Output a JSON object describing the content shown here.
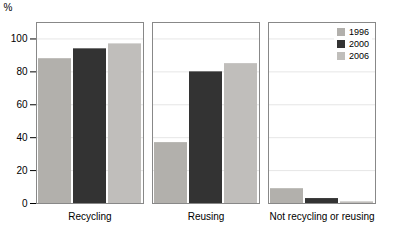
{
  "chart_data": {
    "type": "bar",
    "categories": [
      "Recycling",
      "Reusing",
      "Not recycling or reusing"
    ],
    "series": [
      {
        "name": "1996",
        "color": "#b2b0ac",
        "values": [
          88,
          37,
          9
        ]
      },
      {
        "name": "2000",
        "color": "#333333",
        "values": [
          94,
          80,
          3
        ]
      },
      {
        "name": "2006",
        "color": "#c0bebb",
        "values": [
          97,
          85,
          1
        ]
      }
    ],
    "ylabel": "%",
    "ylim": [
      0,
      110
    ],
    "yticks": [
      0,
      20,
      40,
      60,
      80,
      100
    ],
    "grid": true,
    "legend": "upper right"
  }
}
